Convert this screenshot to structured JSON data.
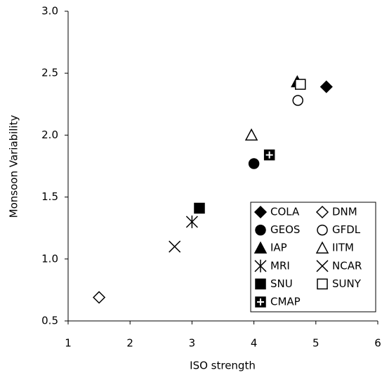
{
  "chart_data": {
    "type": "scatter",
    "xlabel": "ISO strength",
    "ylabel": "Monsoon Variability",
    "xlim": [
      1,
      6
    ],
    "xticks": [
      1,
      2,
      3,
      4,
      5,
      6
    ],
    "ylim": [
      0.5,
      3.0
    ],
    "yticks": [
      {
        "value": 0.5,
        "label": "0.5"
      },
      {
        "value": 1.0,
        "label": "1.0"
      },
      {
        "value": 1.5,
        "label": "1.5"
      },
      {
        "value": 2.0,
        "label": "2.0"
      },
      {
        "value": 2.5,
        "label": "2.5"
      },
      {
        "value": 3.0,
        "label": "3.0"
      }
    ],
    "legend": "lower right",
    "series": [
      {
        "name": "COLA",
        "color": "#000000",
        "marker": "diamond-filled",
        "x": [
          5.17
        ],
        "y": [
          2.39
        ]
      },
      {
        "name": "DNM",
        "color": "#000000",
        "marker": "diamond-open",
        "x": [
          1.5
        ],
        "y": [
          0.69
        ]
      },
      {
        "name": "GEOS",
        "color": "#000000",
        "marker": "circle-filled",
        "x": [
          4.0
        ],
        "y": [
          1.77
        ]
      },
      {
        "name": "GFDL",
        "color": "#000000",
        "marker": "circle-open",
        "x": [
          4.71
        ],
        "y": [
          2.28
        ]
      },
      {
        "name": "IAP",
        "color": "#000000",
        "marker": "triangle-filled",
        "x": [
          4.7
        ],
        "y": [
          2.43
        ]
      },
      {
        "name": "IITM",
        "color": "#000000",
        "marker": "triangle-open",
        "x": [
          3.96
        ],
        "y": [
          2.0
        ]
      },
      {
        "name": "MRI",
        "color": "#000000",
        "marker": "asterisk",
        "x": [
          3.0
        ],
        "y": [
          1.3
        ]
      },
      {
        "name": "NCAR",
        "color": "#000000",
        "marker": "cross",
        "x": [
          2.72
        ],
        "y": [
          1.1
        ]
      },
      {
        "name": "SNU",
        "color": "#000000",
        "marker": "square-filled",
        "x": [
          3.12
        ],
        "y": [
          1.41
        ]
      },
      {
        "name": "SUNY",
        "color": "#000000",
        "marker": "square-open",
        "x": [
          4.75
        ],
        "y": [
          2.41
        ]
      },
      {
        "name": "CMAP",
        "color": "#000000",
        "marker": "square-plus",
        "x": [
          4.25
        ],
        "y": [
          1.84
        ]
      }
    ]
  }
}
